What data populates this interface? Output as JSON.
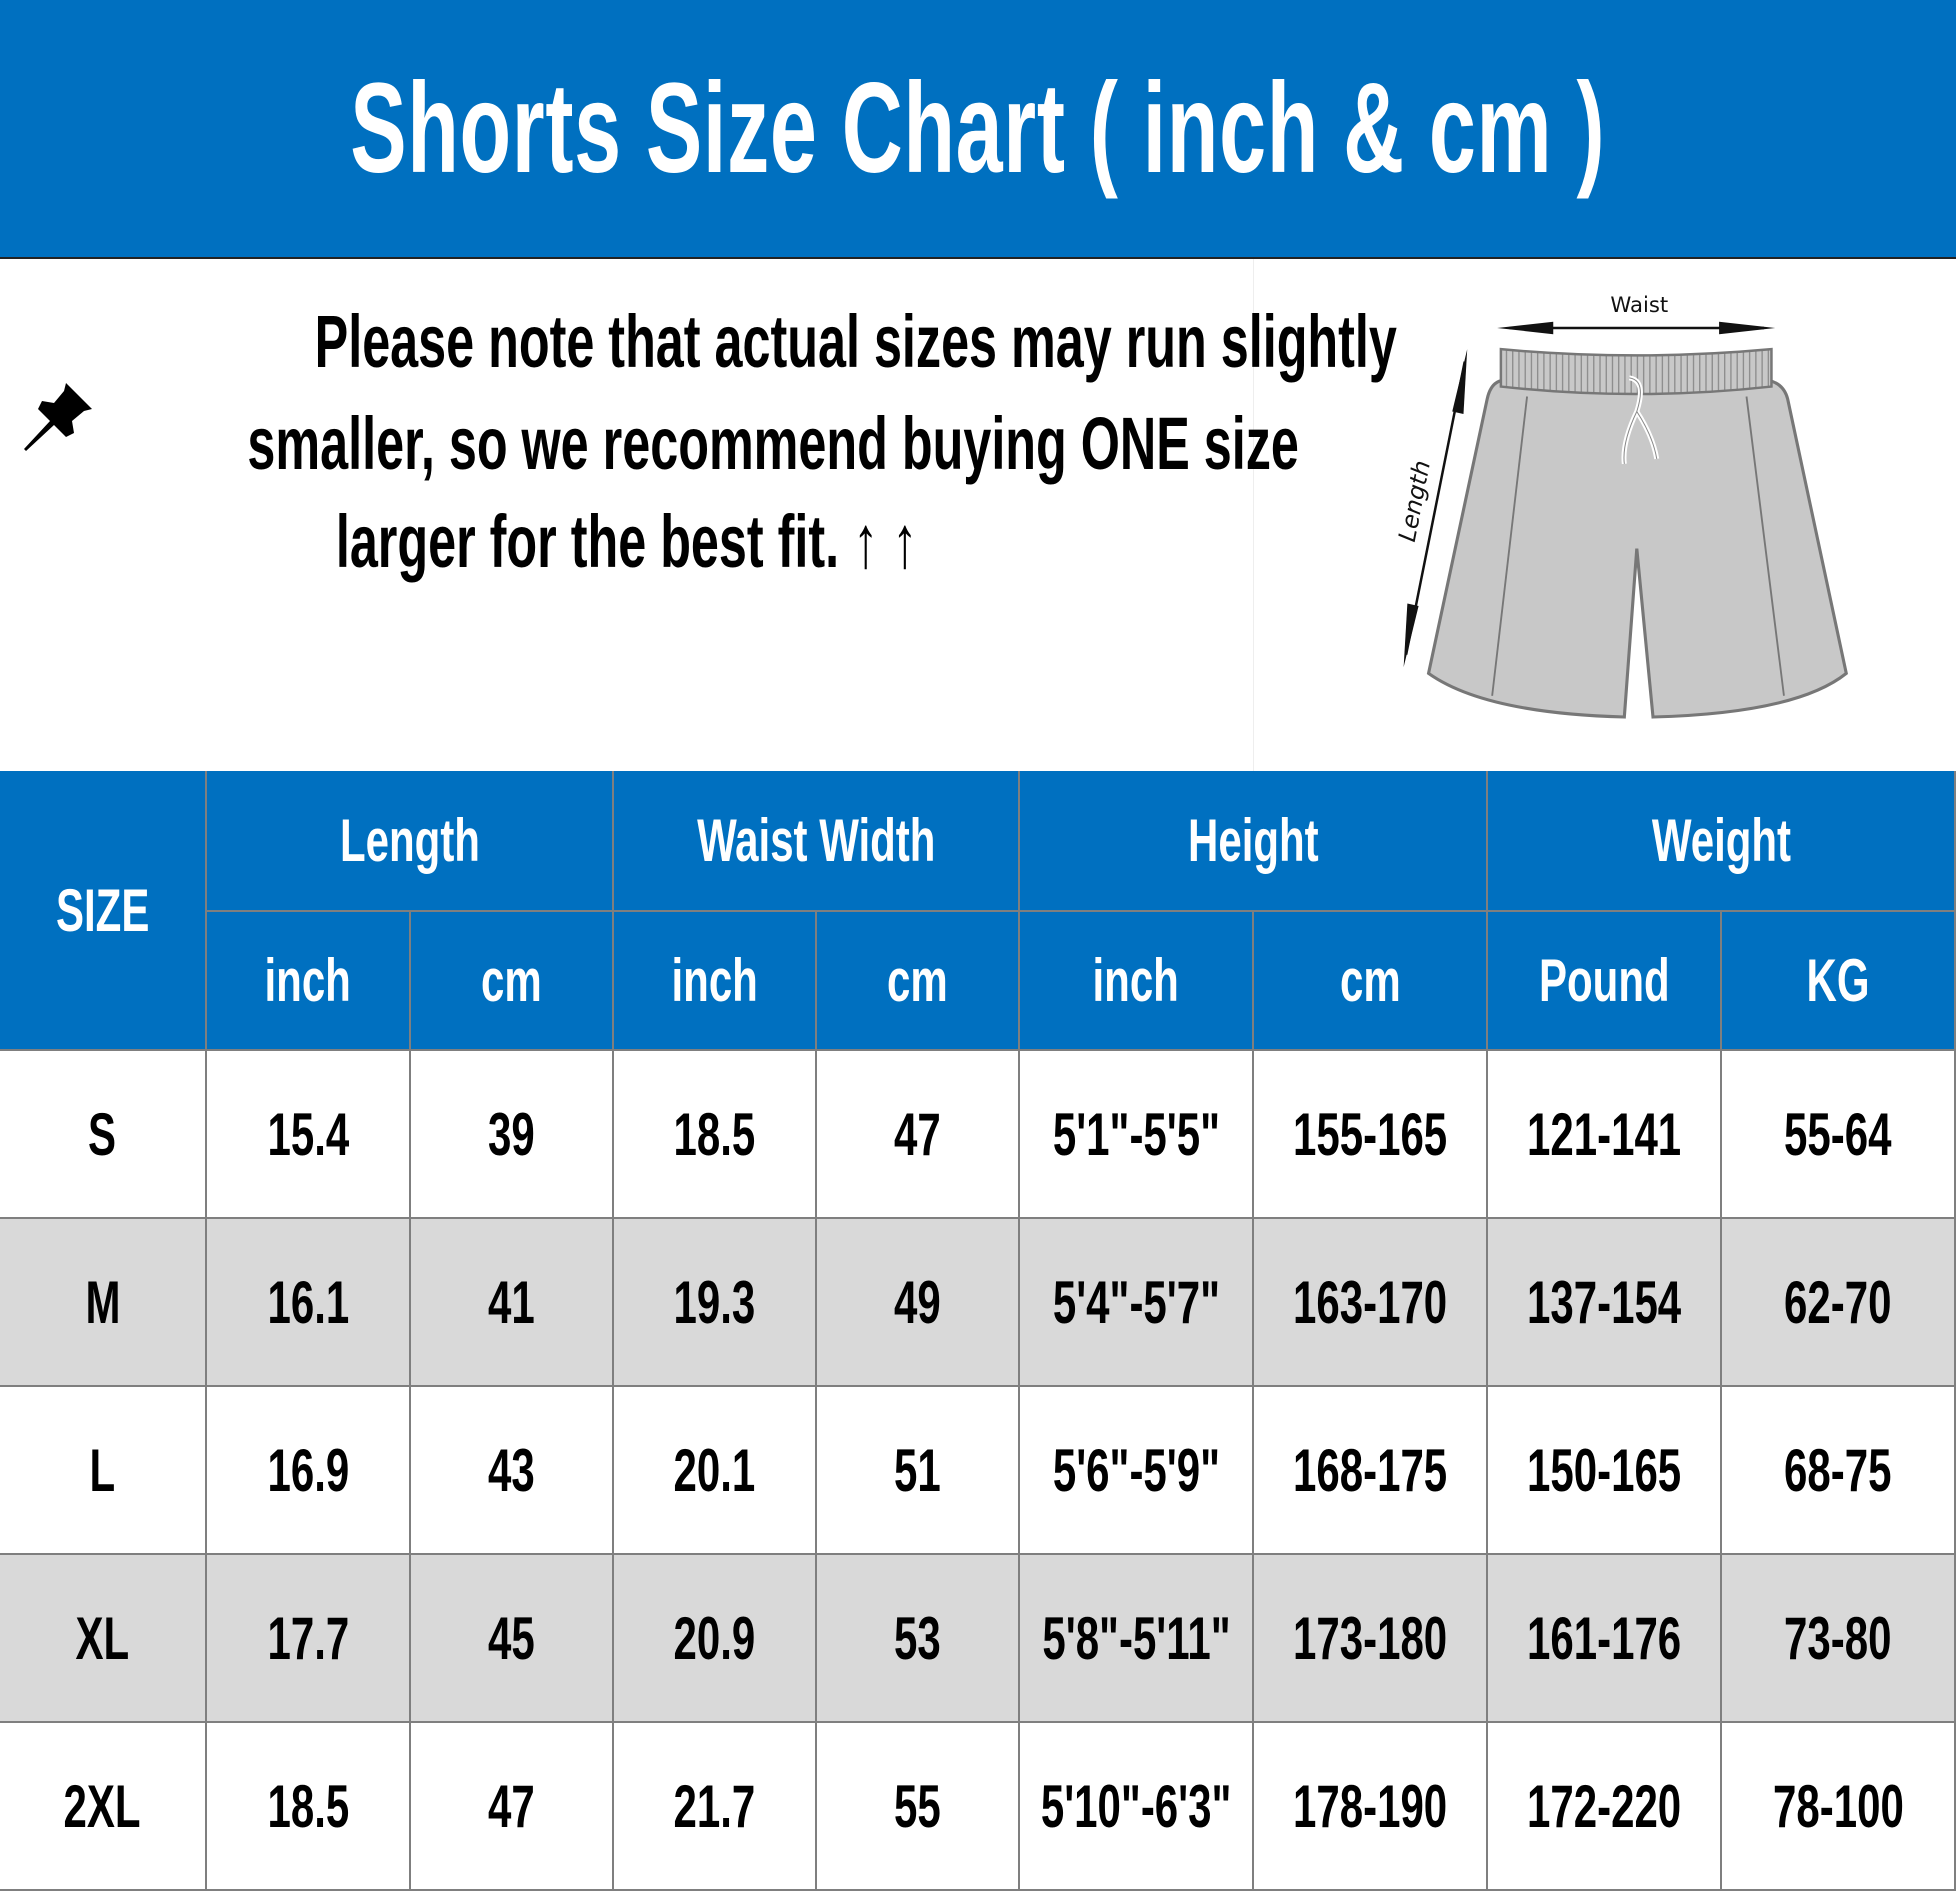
{
  "title": "Shorts Size Chart ( inch & cm )",
  "note": {
    "icon": "pushpin-icon",
    "lines": [
      "Please note that actual sizes may run slightly",
      "smaller, so we recommend buying ONE size",
      "larger for the best fit. ↑ ↑"
    ]
  },
  "illustration": {
    "waist_label": "Waist",
    "length_label": "Length"
  },
  "colors": {
    "header_blue": "#0070C0",
    "row_alt": "#D9D9D9",
    "border": "#7F7F7F"
  },
  "table": {
    "size_header": "SIZE",
    "groups": [
      "Length",
      "Waist Width",
      "Height",
      "Weight"
    ],
    "units": [
      "inch",
      "cm",
      "inch",
      "cm",
      "inch",
      "cm",
      "Pound",
      "KG"
    ],
    "rows": [
      [
        "S",
        "15.4",
        "39",
        "18.5",
        "47",
        "5'1\"-5'5\"",
        "155-165",
        "121-141",
        "55-64"
      ],
      [
        "M",
        "16.1",
        "41",
        "19.3",
        "49",
        "5'4\"-5'7\"",
        "163-170",
        "137-154",
        "62-70"
      ],
      [
        "L",
        "16.9",
        "43",
        "20.1",
        "51",
        "5'6\"-5'9\"",
        "168-175",
        "150-165",
        "68-75"
      ],
      [
        "XL",
        "17.7",
        "45",
        "20.9",
        "53",
        "5'8\"-5'11\"",
        "173-180",
        "161-176",
        "73-80"
      ],
      [
        "2XL",
        "18.5",
        "47",
        "21.7",
        "55",
        "5'10\"-6'3\"",
        "178-190",
        "172-220",
        "78-100"
      ]
    ]
  }
}
